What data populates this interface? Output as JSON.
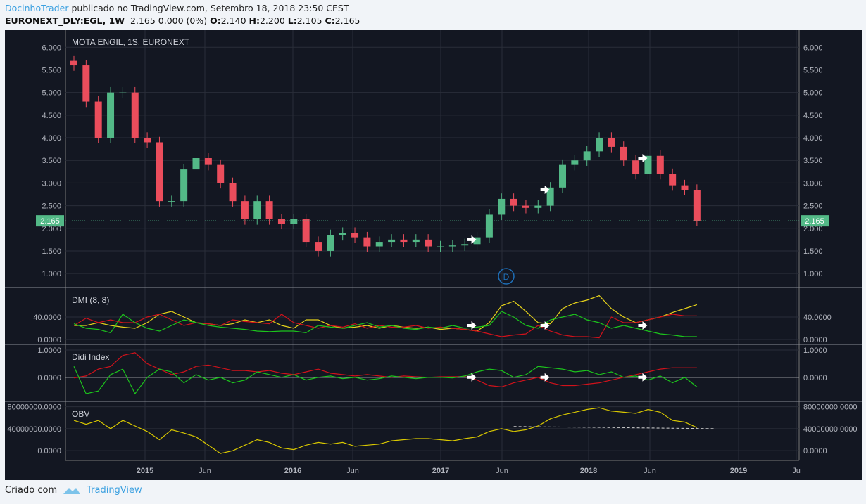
{
  "header": {
    "author": "DocinhoTrader",
    "published": "publicado no TradingView.com, Setembro 18, 2018 23:50 CEST",
    "symbol": "EURONEXT_DLY:EGL, 1W",
    "quote": "2.165 0.000 (0%)",
    "o_label": "O:",
    "o": "2.140",
    "h_label": "H:",
    "h": "2.200",
    "l_label": "L:",
    "l": "2.105",
    "c_label": "C:",
    "c": "2.165"
  },
  "footer": {
    "created_with": "Criado com",
    "brand": "TradingView"
  },
  "colors": {
    "up": "#53b987",
    "down": "#eb4d5c",
    "adx": "#e6d21a",
    "minus_di": "#d0121b",
    "plus_di": "#1cc41c",
    "obv": "#d9c800",
    "last_price": "#53b987",
    "marker": "#1e6fb8"
  },
  "chart_data": [
    {
      "type": "candlestick",
      "title": "MOTA ENGIL, 1S, EURONEXT",
      "ylim": [
        0.8,
        6.3
      ],
      "yticks": [
        "6.000",
        "5.500",
        "5.000",
        "4.500",
        "4.000",
        "3.500",
        "3.000",
        "2.500",
        "2.000",
        "1.500",
        "1.000"
      ],
      "last_price": "2.165",
      "event_marker": "D",
      "x": [
        "2014-06",
        "2014-07",
        "2014-08",
        "2014-09",
        "2014-10",
        "2014-11",
        "2014-12",
        "2015-01",
        "2015-02",
        "2015-03",
        "2015-04",
        "2015-05",
        "2015-06",
        "2015-07",
        "2015-08",
        "2015-09",
        "2015-10",
        "2015-11",
        "2015-12",
        "2016-01",
        "2016-02",
        "2016-03",
        "2016-04",
        "2016-05",
        "2016-06",
        "2016-07",
        "2016-08",
        "2016-09",
        "2016-10",
        "2016-11",
        "2016-12",
        "2017-01",
        "2017-02",
        "2017-03",
        "2017-04",
        "2017-05",
        "2017-06",
        "2017-07",
        "2017-08",
        "2017-09",
        "2017-10",
        "2017-11",
        "2017-12",
        "2018-01",
        "2018-02",
        "2018-03",
        "2018-04",
        "2018-05",
        "2018-06",
        "2018-07",
        "2018-08",
        "2018-09"
      ],
      "close": [
        5.6,
        4.8,
        4.0,
        5.0,
        5.0,
        4.0,
        3.9,
        2.6,
        2.6,
        3.3,
        3.55,
        3.4,
        3.0,
        2.6,
        2.2,
        2.6,
        2.2,
        2.1,
        2.2,
        1.7,
        1.5,
        1.85,
        1.9,
        1.8,
        1.6,
        1.7,
        1.75,
        1.7,
        1.75,
        1.6,
        1.6,
        1.62,
        1.65,
        1.8,
        2.3,
        2.65,
        2.5,
        2.45,
        2.5,
        2.9,
        3.4,
        3.5,
        3.7,
        4.0,
        3.8,
        3.5,
        3.2,
        3.6,
        3.2,
        2.95,
        2.85,
        2.165
      ],
      "arrows_at": [
        "2017-03",
        "2017-09",
        "2018-05"
      ]
    },
    {
      "type": "line",
      "title": "DMI (8, 8)",
      "ylim": [
        0,
        85
      ],
      "yticks": [
        "40.0000",
        "0.0000"
      ],
      "series": [
        {
          "key": "adx",
          "values": [
            25,
            25,
            30,
            25,
            22,
            20,
            30,
            45,
            50,
            40,
            30,
            28,
            25,
            28,
            35,
            30,
            35,
            25,
            20,
            35,
            35,
            25,
            20,
            22,
            25,
            20,
            25,
            22,
            20,
            22,
            18,
            20,
            18,
            15,
            30,
            60,
            68,
            50,
            30,
            28,
            55,
            65,
            70,
            78,
            55,
            40,
            30,
            35,
            40,
            48,
            55,
            62
          ]
        },
        {
          "key": "minus_di",
          "values": [
            25,
            38,
            30,
            35,
            30,
            30,
            40,
            45,
            35,
            25,
            30,
            28,
            25,
            35,
            32,
            30,
            28,
            45,
            30,
            25,
            20,
            25,
            22,
            28,
            20,
            25,
            22,
            22,
            25,
            20,
            22,
            20,
            18,
            15,
            10,
            5,
            8,
            10,
            25,
            15,
            8,
            5,
            5,
            3,
            40,
            30,
            30,
            35,
            40,
            45,
            42,
            42
          ]
        },
        {
          "key": "plus_di",
          "values": [
            28,
            20,
            18,
            12,
            45,
            30,
            20,
            15,
            25,
            35,
            30,
            25,
            22,
            20,
            18,
            15,
            14,
            15,
            15,
            12,
            25,
            22,
            20,
            25,
            30,
            22,
            25,
            20,
            18,
            22,
            20,
            25,
            20,
            22,
            25,
            50,
            40,
            25,
            20,
            35,
            40,
            45,
            35,
            30,
            20,
            25,
            20,
            15,
            10,
            8,
            5,
            5
          ]
        }
      ]
    },
    {
      "type": "line",
      "title": "Didi Index",
      "ylim": [
        -0.7,
        1.05
      ],
      "yticks": [
        "1.0000",
        "0.0000"
      ],
      "series": [
        {
          "key": "minus_di",
          "values": [
            -0.02,
            0.05,
            0.3,
            0.4,
            0.8,
            0.9,
            0.5,
            0.3,
            0.1,
            0.2,
            0.4,
            0.45,
            0.35,
            0.25,
            0.25,
            0.2,
            0.25,
            0.15,
            0.1,
            0.2,
            0.3,
            0.15,
            0.1,
            0.05,
            0.1,
            0.05,
            0,
            0.05,
            0.02,
            0,
            0.02,
            0.02,
            0.03,
            -0.1,
            -0.3,
            -0.35,
            -0.2,
            -0.1,
            0.0,
            -0.2,
            -0.3,
            -0.3,
            -0.25,
            -0.2,
            -0.1,
            0.0,
            0.1,
            0.2,
            0.3,
            0.35,
            0.35,
            0.35
          ]
        },
        {
          "key": "plus_di",
          "values": [
            0.4,
            -0.6,
            -0.5,
            0.1,
            0.3,
            -0.6,
            0.0,
            0.3,
            0.2,
            -0.2,
            0.1,
            -0.1,
            0.0,
            -0.2,
            -0.1,
            0.2,
            0.1,
            0.0,
            0.1,
            -0.1,
            0.0,
            0.05,
            -0.05,
            0.0,
            -0.1,
            -0.05,
            0.05,
            0.0,
            -0.05,
            0.0,
            0.0,
            -0.02,
            0.05,
            0.2,
            0.3,
            0.25,
            0.0,
            0.1,
            0.4,
            0.35,
            0.3,
            0.2,
            0.25,
            0.1,
            0.2,
            0.0,
            0.05,
            -0.1,
            0.05,
            -0.2,
            0.0,
            -0.35
          ]
        }
      ]
    },
    {
      "type": "line",
      "title": "OBV",
      "ylim": [
        -10000000,
        82000000
      ],
      "yticks": [
        "80000000.0000",
        "40000000.0000",
        "0.0000"
      ],
      "series": [
        {
          "key": "obv",
          "values": [
            55,
            48,
            55,
            40,
            55,
            45,
            35,
            20,
            38,
            32,
            25,
            10,
            -5,
            0,
            10,
            20,
            15,
            5,
            2,
            10,
            15,
            12,
            15,
            8,
            10,
            12,
            18,
            20,
            22,
            22,
            20,
            18,
            22,
            25,
            35,
            40,
            35,
            38,
            45,
            58,
            65,
            70,
            75,
            78,
            72,
            70,
            68,
            75,
            70,
            55,
            52,
            42
          ],
          "unit": "millions"
        }
      ]
    }
  ],
  "xaxis": {
    "ticks": [
      "2015",
      "Jun",
      "2016",
      "Jun",
      "2017",
      "Jun",
      "2018",
      "Jun",
      "2019",
      "Ju"
    ],
    "bold": [
      true,
      false,
      true,
      false,
      true,
      false,
      true,
      false,
      true,
      false
    ]
  }
}
